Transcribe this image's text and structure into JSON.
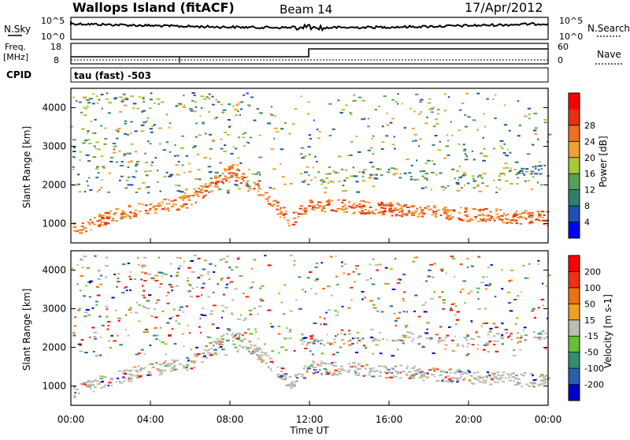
{
  "header": {
    "station": "Wallops Island (fitACF)",
    "beam": "Beam 14",
    "date": "17/Apr/2012"
  },
  "top_panels": {
    "nsky_label": "N.Sky",
    "nsky_ticks": [
      "10^5",
      "10^0"
    ],
    "nsearch_label": "N.Search",
    "nsearch_ticks": [
      "10^5",
      "10^0"
    ],
    "freq_label_line1": "Freq.",
    "freq_label_line2": "[MHz]",
    "freq_ticks": [
      "18",
      "8"
    ],
    "nave_label": "Nave",
    "nave_ticks": [
      "60",
      "0"
    ],
    "cpid_label": "CPID",
    "cpid_value": "tau (fast) -503"
  },
  "x_axis": {
    "label": "Time UT",
    "ticks": [
      "00:00",
      "04:00",
      "08:00",
      "12:00",
      "16:00",
      "20:00",
      "00:00"
    ]
  },
  "chart_data": [
    {
      "type": "heatmap",
      "ylabel": "Slant Range [km]",
      "ylim": [
        500,
        4500
      ],
      "y_ticks": [
        1000,
        2000,
        3000,
        4000
      ],
      "xlabel": "Time UT",
      "x_hours": [
        0,
        4,
        8,
        12,
        16,
        20,
        24
      ],
      "colorbar": {
        "label": "Power [dB]",
        "ticks": [
          "4",
          "8",
          "12",
          "16",
          "20",
          "24",
          "28"
        ],
        "colors": [
          "#0000ff",
          "#1f4fb0",
          "#2f7f6f",
          "#55a055",
          "#a8c838",
          "#f0a030",
          "#f07020",
          "#e83010",
          "#ff0000"
        ]
      },
      "features": [
        {
          "name": "main band",
          "t": [
            0,
            2,
            4,
            6,
            8,
            9.5,
            11,
            12,
            16,
            20,
            24
          ],
          "range_km": [
            850,
            1200,
            1450,
            1600,
            2400,
            1800,
            1100,
            1500,
            1400,
            1250,
            1150
          ]
        },
        {
          "name": "upper band",
          "t": [
            12,
            16,
            20,
            24
          ],
          "range_km": [
            2200,
            2300,
            2150,
            2400
          ]
        }
      ]
    },
    {
      "type": "heatmap",
      "ylabel": "Slant Range [km]",
      "ylim": [
        500,
        4500
      ],
      "y_ticks": [
        1000,
        2000,
        3000,
        4000
      ],
      "xlabel": "Time UT",
      "x_hours": [
        0,
        4,
        8,
        12,
        16,
        20,
        24
      ],
      "colorbar": {
        "label": "Velocity [m s-1]",
        "ticks": [
          "200",
          "100",
          "50",
          "15",
          "-15",
          "-50",
          "-100",
          "-200"
        ],
        "colors": [
          "#0000cc",
          "#2a5fb0",
          "#2f8f6f",
          "#66c033",
          "#bdbdb5",
          "#f0a020",
          "#f07010",
          "#f03010",
          "#ff0000"
        ]
      }
    }
  ],
  "colors": {
    "ground_scatter": "#b8b8b0",
    "axis": "#000000"
  }
}
